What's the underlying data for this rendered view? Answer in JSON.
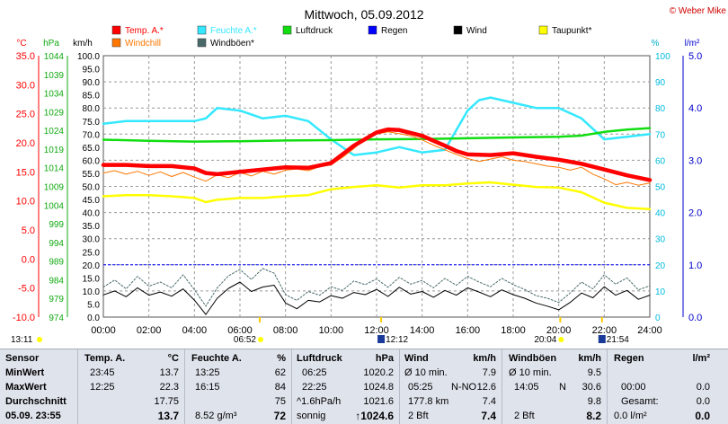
{
  "title": "Mittwoch, 05.09.2012",
  "credit": "© Weber Mike",
  "colors": {
    "temp": "#ff0000",
    "humidity": "#33e8ff",
    "pressure": "#11dd11",
    "rain": "#0000ff",
    "wind": "#000000",
    "dewpoint": "#ffff00",
    "windchill": "#ff7700",
    "gusts": "#4a6a6a",
    "celsius_axis": "#ff0000",
    "hpa_axis": "#11aa11",
    "rain_axis": "#0000cc"
  },
  "legend": [
    {
      "label": "Temp. A.*",
      "key": "temp"
    },
    {
      "label": "Feuchte A.*",
      "key": "humidity"
    },
    {
      "label": "Luftdruck",
      "key": "pressure"
    },
    {
      "label": "Regen",
      "key": "rain"
    },
    {
      "label": "Wind",
      "key": "wind"
    },
    {
      "label": "Taupunkt*",
      "key": "dewpoint"
    },
    {
      "label": "Windchill",
      "key": "windchill"
    },
    {
      "label": "Windböen*",
      "key": "gusts"
    }
  ],
  "axis_units": {
    "celsius": "°C",
    "hpa": "hPa",
    "kmh": "km/h",
    "percent": "%",
    "rain": "l/m²"
  },
  "chart_data": {
    "type": "line",
    "xlim": [
      0,
      24
    ],
    "x_ticks": [
      "00:00",
      "02:00",
      "04:00",
      "06:00",
      "08:00",
      "10:00",
      "12:00",
      "14:00",
      "16:00",
      "18:00",
      "20:00",
      "22:00",
      "24:00"
    ],
    "axes": {
      "kmh": {
        "lim": [
          0,
          100
        ],
        "ticks": [
          "0.0",
          "5.0",
          "10.0",
          "15.0",
          "20.0",
          "25.0",
          "30.0",
          "35.0",
          "40.0",
          "45.0",
          "50.0",
          "55.0",
          "60.0",
          "65.0",
          "70.0",
          "75.0",
          "80.0",
          "85.0",
          "90.0",
          "95.0",
          "100.0"
        ]
      },
      "celsius": {
        "lim": [
          -10,
          35
        ],
        "ticks": [
          "-10.0",
          "-5.0",
          "0.0",
          "5.0",
          "10.0",
          "15.0",
          "20.0",
          "25.0",
          "30.0",
          "35.0"
        ]
      },
      "hpa": {
        "lim": [
          974,
          1044
        ],
        "ticks": [
          "974",
          "979",
          "984",
          "989",
          "994",
          "999",
          "1004",
          "1009",
          "1014",
          "1019",
          "1024",
          "1029",
          "1034",
          "1039",
          "1044"
        ]
      },
      "percent": {
        "lim": [
          0,
          100
        ],
        "ticks": [
          "0",
          "10",
          "20",
          "30",
          "40",
          "50",
          "60",
          "70",
          "80",
          "90",
          "100"
        ]
      },
      "rain": {
        "lim": [
          0,
          5
        ],
        "ticks": [
          "0.0",
          "1.0",
          "2.0",
          "3.0",
          "4.0",
          "5.0"
        ]
      }
    },
    "series": [
      {
        "name": "Temp. A.*",
        "axis": "celsius",
        "key": "temp",
        "width": 4.5,
        "x": [
          0,
          1,
          2,
          3,
          4,
          4.5,
          5,
          6,
          7,
          8,
          9,
          10,
          11,
          12,
          12.5,
          13,
          14,
          15,
          15.5,
          16,
          17,
          18,
          19,
          20,
          21,
          22,
          23,
          24
        ],
        "y": [
          16.2,
          16.2,
          16.0,
          16.0,
          15.6,
          14.8,
          14.6,
          15.0,
          15.4,
          15.8,
          15.7,
          16.5,
          19.5,
          21.8,
          22.3,
          22.2,
          21.2,
          19.5,
          18.6,
          18.0,
          17.9,
          18.2,
          17.6,
          17.1,
          16.4,
          15.4,
          14.4,
          13.6
        ]
      },
      {
        "name": "Feuchte A.*",
        "axis": "percent",
        "key": "humidity",
        "width": 2.5,
        "x": [
          0,
          1,
          2,
          3,
          4,
          4.5,
          5,
          6,
          7,
          8,
          9,
          10,
          11,
          12,
          13,
          14,
          15,
          16,
          16.5,
          17,
          18,
          19,
          20,
          21,
          22,
          23,
          24
        ],
        "y": [
          74,
          75,
          75,
          75,
          75,
          76,
          80,
          79,
          76,
          77,
          75,
          68,
          62,
          63,
          65,
          63,
          64,
          79,
          83,
          84,
          82,
          80,
          80,
          76,
          68,
          69,
          70
        ]
      },
      {
        "name": "Luftdruck",
        "axis": "hpa",
        "key": "pressure",
        "width": 2.5,
        "x": [
          0,
          2,
          4,
          6,
          8,
          10,
          12,
          14,
          16,
          18,
          20,
          21,
          22,
          23,
          24
        ],
        "y": [
          1021.5,
          1021.2,
          1021.0,
          1021.1,
          1021.3,
          1021.4,
          1021.6,
          1021.7,
          1021.9,
          1022.1,
          1022.3,
          1022.6,
          1023.6,
          1024.2,
          1024.6
        ]
      },
      {
        "name": "Taupunkt*",
        "axis": "celsius",
        "key": "dewpoint",
        "width": 2.5,
        "x": [
          0,
          1,
          2,
          3,
          4,
          4.5,
          5,
          6,
          7,
          8,
          9,
          10,
          11,
          12,
          13,
          14,
          15,
          16,
          17,
          18,
          19,
          20,
          21,
          22,
          23,
          24
        ],
        "y": [
          10.8,
          11.0,
          11.0,
          10.8,
          10.5,
          9.8,
          10.2,
          10.5,
          10.5,
          10.8,
          11.0,
          12.0,
          12.4,
          12.7,
          12.3,
          12.7,
          12.7,
          13.0,
          13.2,
          12.8,
          12.4,
          12.3,
          11.5,
          9.7,
          8.8,
          8.6
        ]
      },
      {
        "name": "Windchill",
        "axis": "celsius",
        "key": "windchill",
        "width": 1,
        "x": [
          0,
          0.5,
          1,
          1.5,
          2,
          2.5,
          3,
          3.5,
          4,
          4.5,
          5,
          5.5,
          6,
          6.5,
          7,
          7.5,
          8,
          8.5,
          9,
          9.5,
          10,
          10.5,
          11,
          11.5,
          12,
          12.5,
          13,
          13.5,
          14,
          14.5,
          15,
          15.5,
          16,
          16.5,
          17,
          17.5,
          18,
          18.5,
          19,
          19.5,
          20,
          20.5,
          21,
          21.5,
          22,
          22.5,
          23,
          23.5,
          24
        ],
        "y": [
          14.8,
          15.2,
          14.6,
          15.1,
          14.4,
          15.0,
          14.2,
          14.9,
          14.1,
          13.4,
          14.5,
          14.0,
          14.9,
          14.3,
          15.1,
          14.6,
          15.3,
          15.5,
          15.2,
          15.9,
          16.2,
          17.5,
          19.0,
          20.8,
          21.5,
          21.9,
          21.6,
          21.2,
          20.5,
          19.6,
          18.8,
          18.0,
          17.3,
          16.8,
          17.2,
          17.6,
          17.0,
          16.8,
          16.4,
          16.0,
          15.8,
          15.3,
          15.8,
          14.6,
          13.8,
          12.8,
          13.2,
          12.7,
          13.1
        ]
      },
      {
        "name": "Wind",
        "axis": "kmh",
        "key": "wind",
        "width": 1,
        "x": [
          0,
          0.5,
          1,
          1.5,
          2,
          2.5,
          3,
          3.5,
          4,
          4.5,
          5,
          5.5,
          6,
          6.5,
          7,
          7.5,
          8,
          8.5,
          9,
          9.5,
          10,
          10.5,
          11,
          11.5,
          12,
          12.5,
          13,
          13.5,
          14,
          14.5,
          15,
          15.5,
          16,
          16.5,
          17,
          17.5,
          18,
          18.5,
          19,
          19.5,
          20,
          20.5,
          21,
          21.5,
          22,
          22.5,
          23,
          23.5,
          24
        ],
        "y": [
          8.5,
          10.0,
          7.8,
          11.2,
          8.4,
          9.6,
          8.0,
          10.8,
          6.5,
          1.0,
          7.2,
          11.0,
          13.4,
          9.8,
          11.5,
          12.2,
          5.4,
          3.2,
          6.4,
          5.8,
          8.2,
          7.2,
          9.4,
          8.6,
          10.6,
          7.9,
          11.4,
          8.8,
          9.8,
          7.6,
          10.2,
          8.4,
          11.2,
          9.6,
          7.8,
          10.4,
          8.6,
          7.2,
          5.4,
          4.2,
          2.8,
          5.6,
          9.2,
          7.4,
          11.6,
          8.4,
          10.2,
          6.8,
          8.4
        ]
      },
      {
        "name": "Windböen*",
        "axis": "kmh",
        "key": "gusts",
        "width": 1,
        "dash": "2,2",
        "x": [
          0,
          0.5,
          1,
          1.5,
          2,
          2.5,
          3,
          3.5,
          4,
          4.5,
          5,
          5.5,
          6,
          6.5,
          7,
          7.5,
          8,
          8.5,
          9,
          9.5,
          10,
          10.5,
          11,
          11.5,
          12,
          12.5,
          13,
          13.5,
          14,
          14.5,
          15,
          15.5,
          16,
          16.5,
          17,
          17.5,
          18,
          18.5,
          19,
          19.5,
          20,
          20.5,
          21,
          21.5,
          22,
          22.5,
          23,
          23.5,
          24
        ],
        "y": [
          11.5,
          14.2,
          10.8,
          15.6,
          11.8,
          13.4,
          11.2,
          16.2,
          10.5,
          4.2,
          11.2,
          15.8,
          18.2,
          14.4,
          18.6,
          16.8,
          8.6,
          6.4,
          9.8,
          8.4,
          11.6,
          10.2,
          13.8,
          12.4,
          14.6,
          11.4,
          15.2,
          12.6,
          14.0,
          11.2,
          14.8,
          12.2,
          15.6,
          13.4,
          11.6,
          14.8,
          12.4,
          10.6,
          8.2,
          7.2,
          5.6,
          9.2,
          13.4,
          10.8,
          16.2,
          12.6,
          15.0,
          10.4,
          12.0
        ]
      }
    ],
    "dashed_line": {
      "axis": "rain",
      "value": 1.0
    }
  },
  "markers": {
    "sunrise_left": "13:11",
    "sunrise": "06:52",
    "sunset": "20:04",
    "moon": "12:12",
    "moonset": "21:54"
  },
  "summary": {
    "c1": {
      "h": "Sensor",
      "r1": "MinWert",
      "r2": "MaxWert",
      "r3": "Durchschnitt",
      "r4": "05.09. 23:55"
    },
    "c2": {
      "h": "Temp. A.",
      "u": "°C",
      "r1a": "23:45",
      "r1b": "13.7",
      "r2a": "12:25",
      "r2b": "22.3",
      "r3b": "17.75",
      "r4b": "13.7"
    },
    "c3": {
      "h": "Feuchte A.",
      "u": "%",
      "r1a": "13:25",
      "r1b": "62",
      "r2a": "16:15",
      "r2b": "84",
      "r3b": "75",
      "r4a": "8.52 g/m³",
      "r4b": "72"
    },
    "c4": {
      "h": "Luftdruck",
      "u": "hPa",
      "r1a": "06:25",
      "r1b": "1020.2",
      "r2a": "22:25",
      "r2b": "1024.8",
      "r3a": "^1.6hPa/h",
      "r3b": "1021.6",
      "r4a": "sonnig",
      "r4b": "↑1024.6"
    },
    "c5": {
      "h": "Wind",
      "u": "km/h",
      "r1a": "Ø 10 min.",
      "r1b": "7.9",
      "r2a": "05:25",
      "r2m": "N-NO",
      "r2b": "12.6",
      "r3a": "177.8 km",
      "r3b": "7.4",
      "r4a": "2 Bft",
      "r4b": "7.4"
    },
    "c6": {
      "h": "Windböen",
      "u": "km/h",
      "r1a": "Ø 10 min.",
      "r1b": "9.5",
      "r2a": "14:05",
      "r2m": "N",
      "r2b": "30.6",
      "r3b": "9.8",
      "r4a": "2 Bft",
      "r4b": "8.2"
    },
    "c7": {
      "h": "Regen",
      "u": "l/m²",
      "r2a": "00:00",
      "r2b": "0.0",
      "r3a": "Gesamt:",
      "r3b": "0.0",
      "r4a": "0.0 l/m²",
      "r4b": "0.0"
    }
  }
}
